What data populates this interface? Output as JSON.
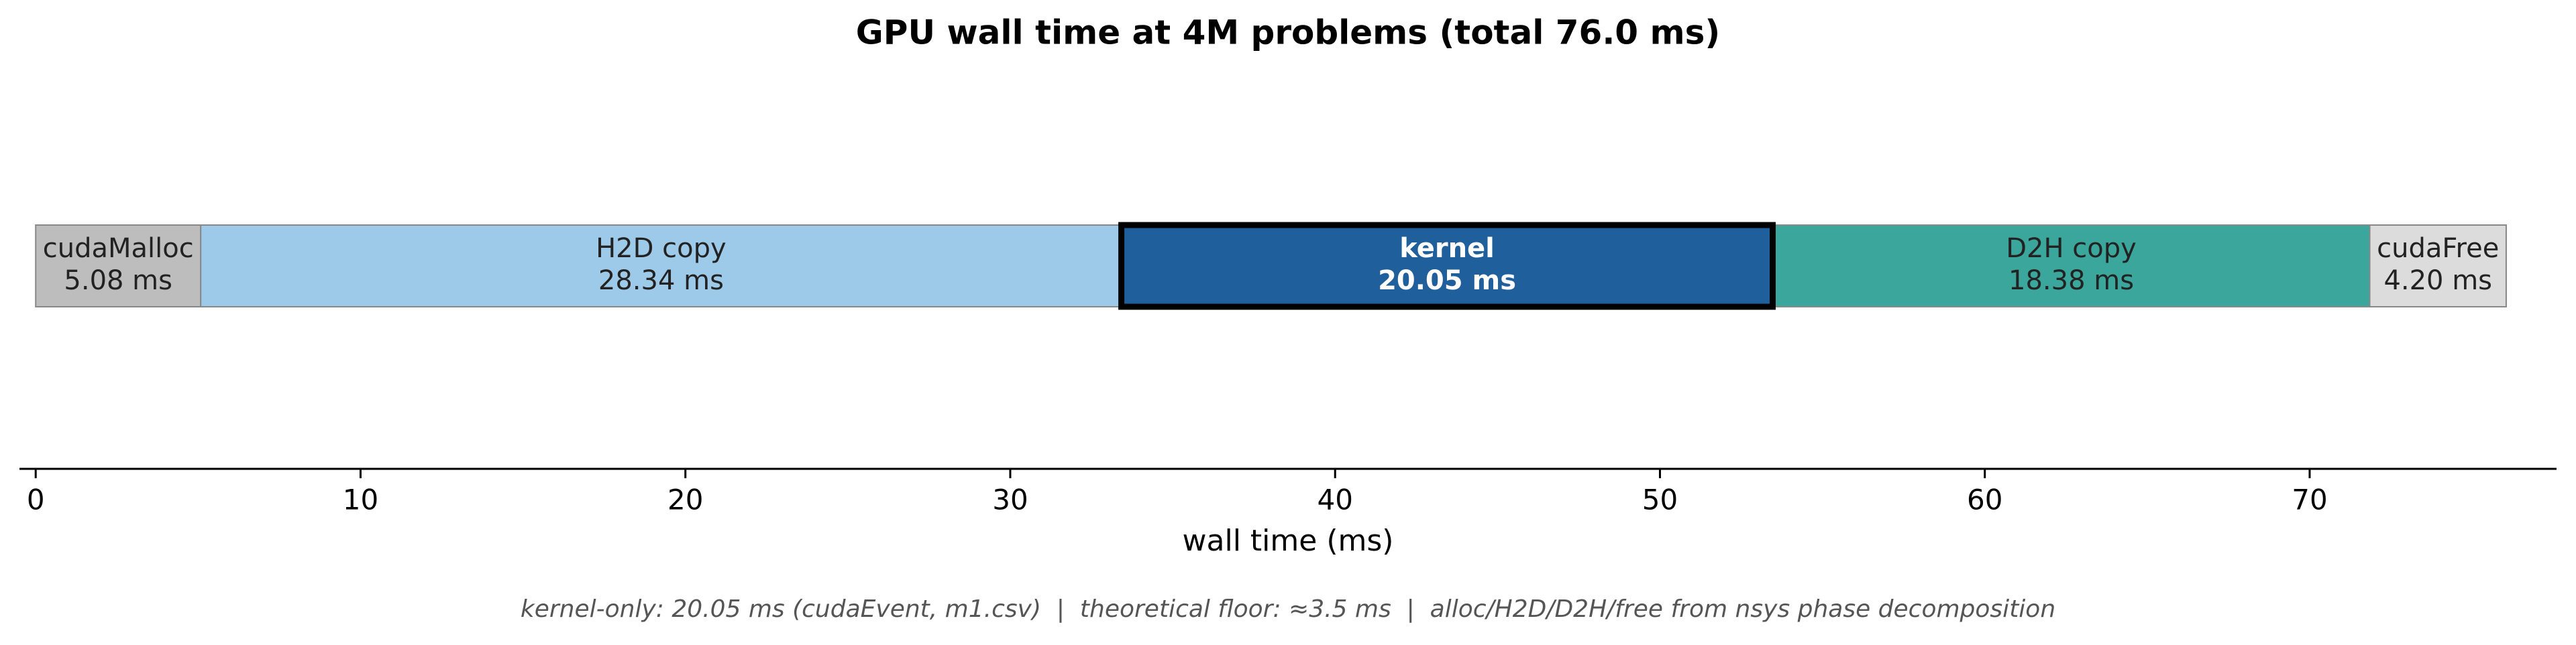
{
  "chart_data": {
    "type": "timeline-bar",
    "title": "GPU wall time at 4M problems (total 76.0 ms)",
    "xlabel": "wall time (ms)",
    "footnote": "kernel-only: 20.05 ms (cudaEvent, m1.csv)  |  theoretical floor: ≈3.5 ms  |  alloc/H2D/D2H/free from nsys phase decomposition",
    "categories": [
      "cudaMalloc",
      "H2D copy",
      "kernel",
      "D2H copy",
      "cudaFree"
    ],
    "values": [
      5.08,
      28.34,
      20.05,
      18.38,
      4.2
    ],
    "value_labels": [
      "5.08 ms",
      "28.34 ms",
      "20.05 ms",
      "18.38 ms",
      "4.20 ms"
    ],
    "colors": [
      "#bdbdbd",
      "#9ecae9",
      "#1f5f9b",
      "#3aa69c",
      "#dcdcdc"
    ],
    "highlight": "kernel",
    "xlim": [
      -0.5,
      77.6
    ],
    "xticks": [
      0,
      10,
      20,
      30,
      40,
      50,
      60,
      70
    ]
  }
}
